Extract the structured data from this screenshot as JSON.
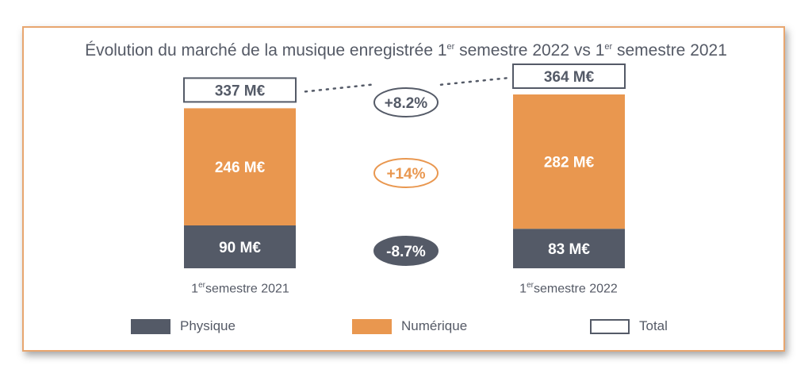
{
  "chart_data": {
    "type": "bar",
    "stacked": true,
    "title": {
      "prefix": "Évolution du marché de la musique enregistrée 1",
      "sup1": "er",
      "middle": " semestre 2022 vs 1",
      "sup2": "er",
      "suffix": " semestre 2021"
    },
    "categories": [
      {
        "num": "1",
        "sup": "er",
        "rest": "semestre 2021"
      },
      {
        "num": "1",
        "sup": "er",
        "rest": "semestre 2022"
      }
    ],
    "series": [
      {
        "name": "Physique",
        "color": "#545a67",
        "values": [
          90,
          83
        ],
        "labels": [
          "90 M€",
          "83 M€"
        ]
      },
      {
        "name": "Numérique",
        "color": "#e9974f",
        "values": [
          246,
          282
        ],
        "labels": [
          "246 M€",
          "282 M€"
        ]
      }
    ],
    "totals": {
      "name": "Total",
      "values": [
        337,
        364
      ],
      "labels": [
        "337 M€",
        "364 M€"
      ]
    },
    "changes": [
      {
        "series": "Total",
        "label": "+8.2%",
        "style": "outline-dark"
      },
      {
        "series": "Numérique",
        "label": "+14%",
        "style": "outline-orange"
      },
      {
        "series": "Physique",
        "label": "-8.7%",
        "style": "filled-dark"
      }
    ],
    "legend": [
      {
        "name": "Physique",
        "style": "filled",
        "color": "#545a67"
      },
      {
        "name": "Numérique",
        "style": "filled",
        "color": "#e9974f"
      },
      {
        "name": "Total",
        "style": "outline",
        "color": "#545a67"
      }
    ],
    "legend_position": "bottom"
  }
}
